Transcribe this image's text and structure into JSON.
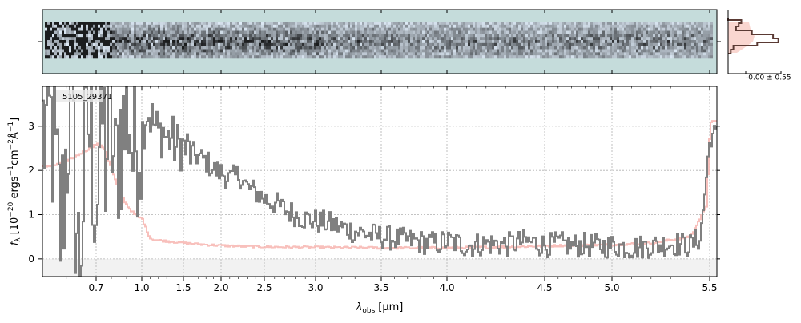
{
  "chart_data": {
    "type": "line",
    "object_label": "5105_29371",
    "xlabel": "$\\lambda_{\\rm obs}$ [$\\mu$m]",
    "xlabel_text": "λ",
    "xlabel_sub": "obs",
    "xlabel_unit": "[μm]",
    "ylabel_text": "f",
    "ylabel_sub": "λ",
    "ylabel_rest": "[10",
    "ylabel_exp1": "−20",
    "ylabel_mid1": " ergs",
    "ylabel_exp2": "−1",
    "ylabel_mid2": "cm",
    "ylabel_exp3": "−2",
    "ylabel_mid3": "Å",
    "ylabel_exp4": "−1",
    "ylabel_end": "]",
    "x_scale": "sqrt-like (resampled wavelength)",
    "xlim": [
      0.52,
      5.55
    ],
    "ylim": [
      -0.4,
      3.9
    ],
    "x_ticks": [
      0.7,
      1.0,
      1.5,
      2.0,
      2.5,
      3.0,
      3.5,
      4.0,
      4.5,
      5.0,
      5.5
    ],
    "x_tick_labels": [
      "0.7",
      "1.0",
      "1.5",
      "2.0",
      "2.5",
      "3.0",
      "3.5",
      "4.0",
      "4.5",
      "5.0",
      "5.5"
    ],
    "y_ticks": [
      0,
      1,
      2,
      3
    ],
    "y_tick_labels": [
      "0",
      "1",
      "2",
      "3"
    ],
    "grid": true,
    "series": [
      {
        "role": "flux",
        "color": "#808080",
        "x": [
          0.55,
          0.58,
          0.61,
          0.64,
          0.67,
          0.7,
          0.73,
          0.76,
          0.79,
          0.82,
          0.85,
          0.88,
          0.91,
          0.94,
          0.97,
          1.0,
          1.05,
          1.1,
          1.15,
          1.2,
          1.25,
          1.3,
          1.35,
          1.4,
          1.45,
          1.5,
          1.6,
          1.7,
          1.8,
          1.9,
          2.0,
          2.1,
          2.2,
          2.3,
          2.4,
          2.5,
          2.6,
          2.7,
          2.8,
          2.9,
          3.0,
          3.1,
          3.2,
          3.3,
          3.4,
          3.5,
          3.6,
          3.7,
          3.8,
          3.9,
          4.0,
          4.1,
          4.2,
          4.3,
          4.4,
          4.5,
          4.6,
          4.7,
          4.8,
          4.9,
          5.0,
          5.1,
          5.2,
          5.3,
          5.4,
          5.45,
          5.5
        ],
        "y": [
          2.9,
          0.6,
          3.6,
          -0.2,
          3.2,
          1.4,
          3.5,
          2.2,
          3.4,
          1.6,
          3.0,
          2.8,
          3.6,
          2.2,
          3.1,
          2.9,
          3.4,
          3.2,
          3.0,
          2.8,
          2.9,
          2.7,
          2.75,
          2.5,
          2.6,
          2.5,
          2.4,
          2.3,
          2.2,
          2.0,
          1.95,
          1.8,
          1.9,
          1.6,
          1.5,
          1.35,
          1.25,
          1.1,
          1.0,
          0.9,
          0.85,
          0.8,
          0.7,
          0.62,
          0.55,
          0.5,
          0.45,
          0.42,
          0.38,
          0.35,
          0.4,
          0.3,
          0.35,
          0.32,
          0.4,
          0.3,
          0.35,
          0.3,
          0.32,
          0.28,
          0.3,
          0.25,
          0.3,
          0.35,
          0.3,
          0.5,
          2.8
        ]
      },
      {
        "role": "error",
        "color": "#f7b5b0",
        "x": [
          0.55,
          0.6,
          0.65,
          0.7,
          0.75,
          0.8,
          0.85,
          0.9,
          0.95,
          1.0,
          1.05,
          1.1,
          1.2,
          1.3,
          1.4,
          1.5,
          1.7,
          2.0,
          2.3,
          2.6,
          3.0,
          3.5,
          4.0,
          4.3,
          4.6,
          5.0,
          5.2,
          5.4,
          5.48,
          5.5
        ],
        "y": [
          2.1,
          2.2,
          2.4,
          2.6,
          2.5,
          2.0,
          1.5,
          1.2,
          1.0,
          0.9,
          0.65,
          0.45,
          0.42,
          0.4,
          0.38,
          0.36,
          0.33,
          0.3,
          0.28,
          0.27,
          0.26,
          0.25,
          0.25,
          0.27,
          0.3,
          0.32,
          0.36,
          0.5,
          1.2,
          3.1
        ]
      }
    ],
    "spectrum_2d": {
      "color_background": "#c5dcdb",
      "trace_color": "#1e2a44"
    },
    "profile_panel": {
      "label": "-0.00 ± 0.55",
      "hist_color": "#5a3a34",
      "fill_color": "#f7c8c0"
    }
  }
}
